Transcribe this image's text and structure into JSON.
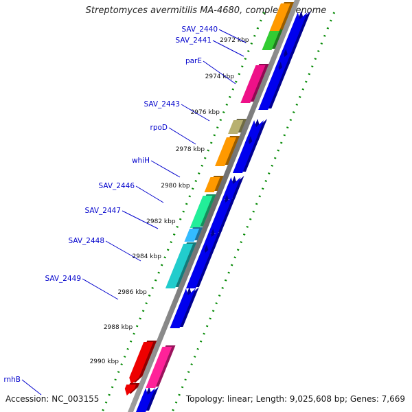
{
  "title": "Streptomyces avermitilis MA-4680, complete genome",
  "footer": {
    "accession": "Accession: NC_003155",
    "summary": "Topology: linear; Length: 9,025,608 bp; Genes: 7,669"
  },
  "ticks": [
    "2972 kbp",
    "2974 kbp",
    "2976 kbp",
    "2978 kbp",
    "2980 kbp",
    "2982 kbp",
    "2984 kbp",
    "2986 kbp",
    "2988 kbp",
    "2990 kbp"
  ],
  "gene_labels": [
    "SAV_2440",
    "SAV_2441",
    "parE",
    "SAV_2443",
    "rpoD",
    "whiH",
    "SAV_2446",
    "SAV_2447",
    "SAV_2448",
    "SAV_2449",
    "rnhB"
  ],
  "colors": {
    "blue": "#0000ee",
    "green": "#33cc33",
    "orange": "#ff9900",
    "magenta": "#ee1188",
    "olive": "#b8b070",
    "mint": "#22ee99",
    "sky": "#33bbff",
    "teal": "#22cccc",
    "red": "#ee0000",
    "pink": "#ff2299",
    "backbone": "#808080",
    "dots": "#008800",
    "leader": "#0000cc"
  }
}
